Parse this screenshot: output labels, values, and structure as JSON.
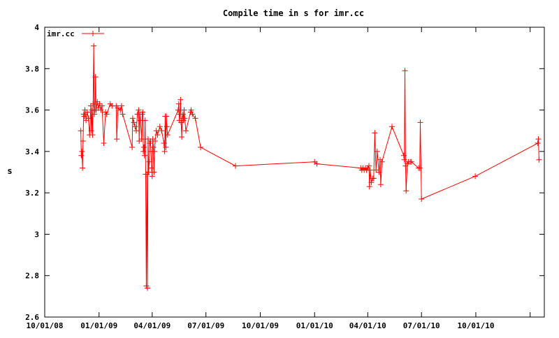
{
  "chart_data": {
    "type": "line",
    "title": "Compile time in s for imr.cc",
    "xlabel": "",
    "ylabel": "s",
    "xlim": [
      "2008-10-01",
      "2011-01-25"
    ],
    "ylim": [
      2.6,
      4.0
    ],
    "x_ticks": [
      "10/01/08",
      "01/01/09",
      "04/01/09",
      "07/01/09",
      "10/01/09",
      "01/01/10",
      "04/01/10",
      "07/01/10",
      "10/01/10"
    ],
    "y_ticks": [
      "2.6",
      "2.8",
      "3",
      "3.2",
      "3.4",
      "3.6",
      "3.8",
      "4"
    ],
    "grid": false,
    "legend_position": "top-left",
    "colors": {
      "series": "#ff0000",
      "axis": "#000000"
    },
    "series": [
      {
        "name": "imr.cc",
        "points": [
          [
            "2008-12-01",
            3.5
          ],
          [
            "2008-12-02",
            3.38
          ],
          [
            "2008-12-03",
            3.4
          ],
          [
            "2008-12-04",
            3.32
          ],
          [
            "2008-12-05",
            3.45
          ],
          [
            "2008-12-06",
            3.58
          ],
          [
            "2008-12-07",
            3.57
          ],
          [
            "2008-12-08",
            3.6
          ],
          [
            "2008-12-10",
            3.55
          ],
          [
            "2008-12-12",
            3.59
          ],
          [
            "2008-12-14",
            3.56
          ],
          [
            "2008-12-16",
            3.48
          ],
          [
            "2008-12-18",
            3.62
          ],
          [
            "2008-12-19",
            3.5
          ],
          [
            "2008-12-20",
            3.6
          ],
          [
            "2008-12-21",
            3.48
          ],
          [
            "2008-12-22",
            3.63
          ],
          [
            "2008-12-23",
            3.91
          ],
          [
            "2008-12-24",
            3.58
          ],
          [
            "2008-12-25",
            3.6
          ],
          [
            "2008-12-26",
            3.76
          ],
          [
            "2008-12-27",
            3.6
          ],
          [
            "2008-12-29",
            3.64
          ],
          [
            "2008-12-31",
            3.61
          ],
          [
            "2009-01-02",
            3.63
          ],
          [
            "2009-01-04",
            3.6
          ],
          [
            "2009-01-06",
            3.62
          ],
          [
            "2009-01-09",
            3.44
          ],
          [
            "2009-01-12",
            3.59
          ],
          [
            "2009-01-14",
            3.58
          ],
          [
            "2009-01-20",
            3.63
          ],
          [
            "2009-01-23",
            3.62
          ],
          [
            "2009-01-30",
            3.62
          ],
          [
            "2009-01-31",
            3.46
          ],
          [
            "2009-02-02",
            3.61
          ],
          [
            "2009-02-06",
            3.6
          ],
          [
            "2009-02-08",
            3.62
          ],
          [
            "2009-02-10",
            3.58
          ],
          [
            "2009-02-26",
            3.42
          ],
          [
            "2009-02-27",
            3.56
          ],
          [
            "2009-03-01",
            3.54
          ],
          [
            "2009-03-03",
            3.52
          ],
          [
            "2009-03-05",
            3.5
          ],
          [
            "2009-03-07",
            3.58
          ],
          [
            "2009-03-09",
            3.6
          ],
          [
            "2009-03-10",
            3.45
          ],
          [
            "2009-03-11",
            3.58
          ],
          [
            "2009-03-12",
            3.55
          ],
          [
            "2009-03-14",
            3.46
          ],
          [
            "2009-03-15",
            3.58
          ],
          [
            "2009-03-16",
            3.59
          ],
          [
            "2009-03-17",
            3.4
          ],
          [
            "2009-03-18",
            3.42
          ],
          [
            "2009-03-19",
            3.38
          ],
          [
            "2009-03-20",
            3.55
          ],
          [
            "2009-03-21",
            3.29
          ],
          [
            "2009-03-22",
            2.75
          ],
          [
            "2009-03-23",
            3.29
          ],
          [
            "2009-03-24",
            2.74
          ],
          [
            "2009-03-25",
            3.46
          ],
          [
            "2009-03-26",
            3.3
          ],
          [
            "2009-03-27",
            3.35
          ],
          [
            "2009-03-28",
            3.44
          ],
          [
            "2009-03-29",
            3.45
          ],
          [
            "2009-03-30",
            3.4
          ],
          [
            "2009-03-31",
            3.32
          ],
          [
            "2009-04-01",
            3.28
          ],
          [
            "2009-04-02",
            3.46
          ],
          [
            "2009-04-03",
            3.42
          ],
          [
            "2009-04-04",
            3.3
          ],
          [
            "2009-04-05",
            3.4
          ],
          [
            "2009-04-06",
            3.45
          ],
          [
            "2009-04-08",
            3.5
          ],
          [
            "2009-04-10",
            3.48
          ],
          [
            "2009-04-14",
            3.52
          ],
          [
            "2009-04-17",
            3.5
          ],
          [
            "2009-04-21",
            3.44
          ],
          [
            "2009-04-22",
            3.4
          ],
          [
            "2009-04-23",
            3.57
          ],
          [
            "2009-04-24",
            3.42
          ],
          [
            "2009-04-25",
            3.57
          ],
          [
            "2009-04-26",
            3.52
          ],
          [
            "2009-04-27",
            3.48
          ],
          [
            "2009-05-15",
            3.6
          ],
          [
            "2009-05-16",
            3.63
          ],
          [
            "2009-05-17",
            3.55
          ],
          [
            "2009-05-18",
            3.58
          ],
          [
            "2009-05-19",
            3.65
          ],
          [
            "2009-05-20",
            3.54
          ],
          [
            "2009-05-21",
            3.47
          ],
          [
            "2009-05-22",
            3.56
          ],
          [
            "2009-05-23",
            3.58
          ],
          [
            "2009-05-24",
            3.55
          ],
          [
            "2009-05-25",
            3.6
          ],
          [
            "2009-05-26",
            3.56
          ],
          [
            "2009-05-28",
            3.5
          ],
          [
            "2009-06-05",
            3.59
          ],
          [
            "2009-06-06",
            3.6
          ],
          [
            "2009-06-08",
            3.58
          ],
          [
            "2009-06-13",
            3.56
          ],
          [
            "2009-06-22",
            3.42
          ],
          [
            "2009-08-20",
            3.33
          ],
          [
            "2010-01-01",
            3.35
          ],
          [
            "2010-01-05",
            3.34
          ],
          [
            "2010-03-20",
            3.32
          ],
          [
            "2010-03-22",
            3.31
          ],
          [
            "2010-03-24",
            3.32
          ],
          [
            "2010-03-26",
            3.31
          ],
          [
            "2010-03-28",
            3.32
          ],
          [
            "2010-03-30",
            3.31
          ],
          [
            "2010-04-01",
            3.32
          ],
          [
            "2010-04-03",
            3.33
          ],
          [
            "2010-04-04",
            3.23
          ],
          [
            "2010-04-05",
            3.31
          ],
          [
            "2010-04-07",
            3.25
          ],
          [
            "2010-04-09",
            3.27
          ],
          [
            "2010-04-11",
            3.27
          ],
          [
            "2010-04-13",
            3.49
          ],
          [
            "2010-04-15",
            3.31
          ],
          [
            "2010-04-17",
            3.4
          ],
          [
            "2010-04-20",
            3.3
          ],
          [
            "2010-04-22",
            3.36
          ],
          [
            "2010-04-23",
            3.24
          ],
          [
            "2010-04-25",
            3.35
          ],
          [
            "2010-05-12",
            3.52
          ],
          [
            "2010-06-01",
            3.38
          ],
          [
            "2010-06-02",
            3.36
          ],
          [
            "2010-06-03",
            3.79
          ],
          [
            "2010-06-04",
            3.33
          ],
          [
            "2010-06-05",
            3.21
          ],
          [
            "2010-06-07",
            3.34
          ],
          [
            "2010-06-09",
            3.35
          ],
          [
            "2010-06-12",
            3.35
          ],
          [
            "2010-06-14",
            3.35
          ],
          [
            "2010-06-26",
            3.32
          ],
          [
            "2010-06-28",
            3.32
          ],
          [
            "2010-06-29",
            3.54
          ],
          [
            "2010-07-01",
            3.17
          ],
          [
            "2010-09-30",
            3.28
          ],
          [
            "2011-01-14",
            3.44
          ],
          [
            "2011-01-15",
            3.46
          ],
          [
            "2011-01-16",
            3.36
          ]
        ]
      }
    ]
  }
}
